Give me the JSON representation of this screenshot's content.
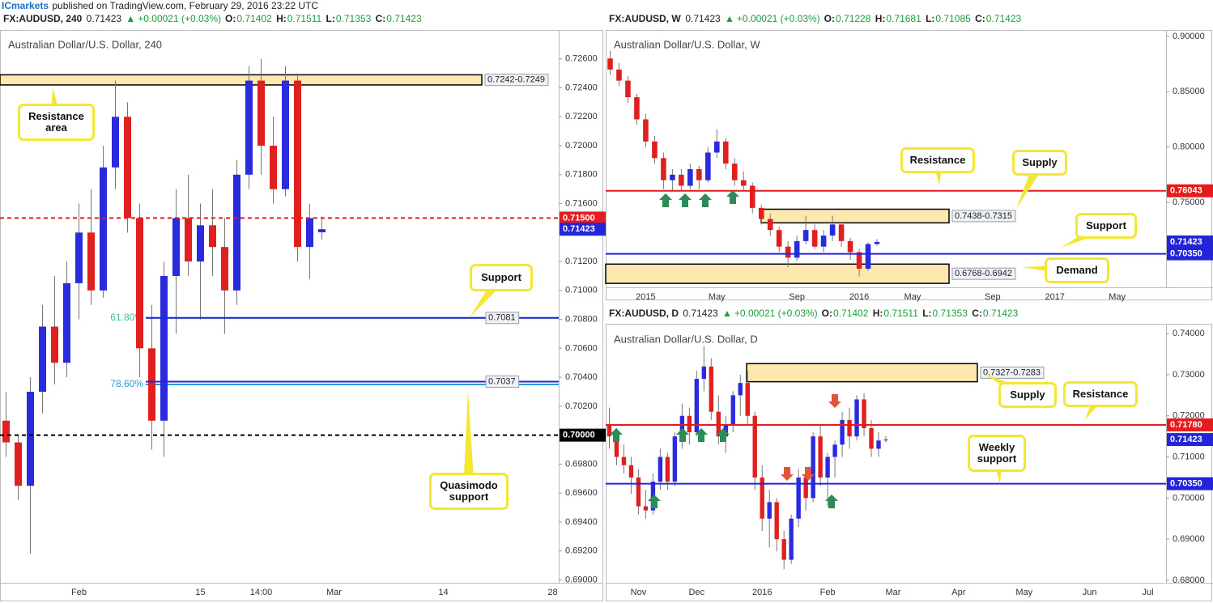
{
  "publisher": "ICmarkets",
  "published": "published on TradingView.com, February 29, 2016 23:22 UTC",
  "chart_data": [
    {
      "type": "candlestick",
      "symbol": "FX:AUDUSD, 240",
      "last": "0.71423",
      "change": "+0.00021 (+0.03%)",
      "ohlc": [
        {
          "label": "O:",
          "value": "0.71402"
        },
        {
          "label": "H:",
          "value": "0.71511"
        },
        {
          "label": "L:",
          "value": "0.71353"
        },
        {
          "label": "C:",
          "value": "0.71423"
        }
      ],
      "title": "Australian Dollar/U.S. Dollar, 240",
      "up_color": "#2a2adf",
      "down_color": "#e01f1f",
      "categories": [
        null,
        null,
        null,
        null,
        null,
        null,
        "Feb",
        null,
        null,
        null,
        null,
        null,
        null,
        null,
        null,
        null,
        "15",
        null,
        null,
        null,
        null,
        "14:00",
        null,
        null,
        null,
        null,
        null,
        "Mar",
        null,
        null,
        null,
        null,
        null,
        null,
        null,
        null,
        "14",
        null,
        null,
        null,
        null,
        null,
        null,
        null,
        null,
        "28"
      ],
      "values": [
        [
          0.701,
          0.703,
          0.6985,
          0.6995
        ],
        [
          0.6995,
          0.7,
          0.6955,
          0.6965
        ],
        [
          0.6965,
          0.704,
          0.6918,
          0.703
        ],
        [
          0.703,
          0.709,
          0.7015,
          0.7075
        ],
        [
          0.7075,
          0.711,
          0.7035,
          0.705
        ],
        [
          0.705,
          0.712,
          0.704,
          0.7105
        ],
        [
          0.7105,
          0.716,
          0.708,
          0.714
        ],
        [
          0.714,
          0.717,
          0.709,
          0.71
        ],
        [
          0.71,
          0.72,
          0.7095,
          0.7185
        ],
        [
          0.7185,
          0.7245,
          0.717,
          0.722
        ],
        [
          0.722,
          0.723,
          0.714,
          0.715
        ],
        [
          0.715,
          0.716,
          0.704,
          0.706
        ],
        [
          0.706,
          0.709,
          0.699,
          0.701
        ],
        [
          0.701,
          0.712,
          0.6985,
          0.711
        ],
        [
          0.711,
          0.717,
          0.707,
          0.715
        ],
        [
          0.715,
          0.718,
          0.711,
          0.712
        ],
        [
          0.712,
          0.716,
          0.708,
          0.7145
        ],
        [
          0.7145,
          0.717,
          0.711,
          0.713
        ],
        [
          0.713,
          0.715,
          0.707,
          0.71
        ],
        [
          0.71,
          0.719,
          0.709,
          0.718
        ],
        [
          0.718,
          0.7255,
          0.717,
          0.7245
        ],
        [
          0.7245,
          0.726,
          0.718,
          0.72
        ],
        [
          0.72,
          0.722,
          0.716,
          0.717
        ],
        [
          0.717,
          0.7255,
          0.7165,
          0.7245
        ],
        [
          0.7245,
          0.725,
          0.712,
          0.713
        ],
        [
          0.713,
          0.716,
          0.7108,
          0.715
        ],
        [
          0.71402,
          0.71511,
          0.71353,
          0.71423
        ],
        null,
        null,
        null,
        null,
        null,
        null,
        null,
        null,
        null,
        null,
        null,
        null,
        null,
        null,
        null,
        null,
        null,
        null,
        null
      ],
      "ylim": [
        0.6898,
        0.728
      ],
      "yticks": [
        {
          "value": 0.69,
          "label": "0.69000"
        },
        {
          "value": 0.692,
          "label": "0.69200"
        },
        {
          "value": 0.694,
          "label": "0.69400"
        },
        {
          "value": 0.696,
          "label": "0.69600"
        },
        {
          "value": 0.698,
          "label": "0.69800"
        },
        {
          "value": 0.7,
          "label": "0.70000"
        },
        {
          "value": 0.702,
          "label": "0.70200"
        },
        {
          "value": 0.704,
          "label": "0.70400"
        },
        {
          "value": 0.706,
          "label": "0.70600"
        },
        {
          "value": 0.708,
          "label": "0.70800"
        },
        {
          "value": 0.71,
          "label": "0.71000"
        },
        {
          "value": 0.712,
          "label": "0.71200"
        },
        {
          "value": 0.714,
          "label": "0.71400"
        },
        {
          "value": 0.716,
          "label": "0.71600"
        },
        {
          "value": 0.718,
          "label": "0.71800"
        },
        {
          "value": 0.72,
          "label": "0.72000"
        },
        {
          "value": 0.722,
          "label": "0.72200"
        },
        {
          "value": 0.724,
          "label": "0.72400"
        },
        {
          "value": 0.726,
          "label": "0.72600"
        }
      ],
      "levels": [
        {
          "value": 0.715,
          "label": "0.71500",
          "color": "#e51c1c",
          "style": "dashed",
          "place": "axis"
        },
        {
          "value": 0.71423,
          "label": "0.71423",
          "color": "#2424d8",
          "style": "none",
          "place": "axis"
        },
        {
          "value": 0.7081,
          "label": "0.7081",
          "color": "#2424d8",
          "style": "solid",
          "place": "tag"
        },
        {
          "value": 0.7037,
          "label": "0.7037",
          "color": "#2424d8",
          "style": "solid",
          "place": "tag"
        },
        {
          "value": 0.7,
          "label": "0.70000",
          "color": "#000000",
          "style": "dashed",
          "place": "axis"
        }
      ],
      "fibs": [
        {
          "value": 0.7081,
          "label": "61.80%",
          "color": "#3cc48a"
        },
        {
          "value": 0.7035,
          "label": "78.60%",
          "color": "#2e9bd6"
        }
      ],
      "zones": [
        {
          "low": 0.7242,
          "high": 0.7249,
          "label": "0.7242-0.7249"
        }
      ],
      "annotations": [
        "Resistance area",
        "Support",
        "Quasimodo support"
      ]
    },
    {
      "type": "candlestick",
      "symbol": "FX:AUDUSD, W",
      "last": "0.71423",
      "change": "+0.00021 (+0.03%)",
      "ohlc": [
        {
          "label": "O:",
          "value": "0.71228"
        },
        {
          "label": "H:",
          "value": "0.71681"
        },
        {
          "label": "L:",
          "value": "0.71085"
        },
        {
          "label": "C:",
          "value": "0.71423"
        }
      ],
      "title": "Australian Dollar/U.S. Dollar, W",
      "up_color": "#2a2adf",
      "down_color": "#e01f1f",
      "categories": [
        null,
        null,
        null,
        null,
        "2015",
        null,
        null,
        null,
        null,
        null,
        null,
        null,
        "May",
        null,
        null,
        null,
        null,
        null,
        null,
        null,
        null,
        "Sep",
        null,
        null,
        null,
        null,
        null,
        null,
        "2016",
        null,
        null,
        null,
        null,
        null,
        "May",
        null,
        null,
        null,
        null,
        null,
        null,
        null,
        null,
        "Sep",
        null,
        null,
        null,
        null,
        null,
        null,
        "2017",
        null,
        null,
        null,
        null,
        null,
        null,
        "May",
        null,
        null,
        null,
        null,
        null
      ],
      "values": [
        [
          0.88,
          0.887,
          0.865,
          0.87
        ],
        [
          0.87,
          0.876,
          0.855,
          0.86
        ],
        [
          0.86,
          0.864,
          0.84,
          0.845
        ],
        [
          0.845,
          0.848,
          0.82,
          0.825
        ],
        [
          0.825,
          0.83,
          0.8,
          0.805
        ],
        [
          0.805,
          0.81,
          0.785,
          0.79
        ],
        [
          0.79,
          0.795,
          0.762,
          0.77
        ],
        [
          0.77,
          0.78,
          0.76,
          0.775
        ],
        [
          0.775,
          0.78,
          0.76,
          0.765
        ],
        [
          0.765,
          0.785,
          0.762,
          0.78
        ],
        [
          0.78,
          0.783,
          0.762,
          0.77
        ],
        [
          0.77,
          0.8,
          0.768,
          0.795
        ],
        [
          0.795,
          0.816,
          0.79,
          0.805
        ],
        [
          0.805,
          0.808,
          0.78,
          0.785
        ],
        [
          0.785,
          0.79,
          0.765,
          0.77
        ],
        [
          0.77,
          0.778,
          0.76,
          0.765
        ],
        [
          0.765,
          0.768,
          0.74,
          0.745
        ],
        [
          0.745,
          0.748,
          0.73,
          0.735
        ],
        [
          0.735,
          0.74,
          0.72,
          0.725
        ],
        [
          0.725,
          0.728,
          0.705,
          0.71
        ],
        [
          0.71,
          0.715,
          0.691,
          0.7
        ],
        [
          0.7,
          0.72,
          0.697,
          0.715
        ],
        [
          0.715,
          0.738,
          0.712,
          0.725
        ],
        [
          0.725,
          0.73,
          0.708,
          0.71
        ],
        [
          0.71,
          0.725,
          0.705,
          0.72
        ],
        [
          0.72,
          0.738,
          0.715,
          0.73
        ],
        [
          0.73,
          0.732,
          0.71,
          0.715
        ],
        [
          0.715,
          0.718,
          0.698,
          0.705
        ],
        [
          0.705,
          0.708,
          0.683,
          0.69
        ],
        [
          0.69,
          0.714,
          0.688,
          0.7123
        ],
        [
          0.71228,
          0.71681,
          0.71085,
          0.71423
        ],
        null,
        null,
        null,
        null,
        null,
        null,
        null,
        null,
        null,
        null,
        null,
        null,
        null,
        null,
        null,
        null,
        null,
        null,
        null,
        null,
        null,
        null,
        null,
        null,
        null,
        null,
        null,
        null,
        null,
        null,
        null,
        null
      ],
      "ylim": [
        0.6732,
        0.9058
      ],
      "yticks": [
        {
          "value": 0.75,
          "label": "0.75000"
        },
        {
          "value": 0.8,
          "label": "0.80000"
        },
        {
          "value": 0.85,
          "label": "0.85000"
        },
        {
          "value": 0.9,
          "label": "0.90000"
        }
      ],
      "levels": [
        {
          "value": 0.76043,
          "label": "0.76043",
          "color": "#e51c1c",
          "style": "solid",
          "place": "axis"
        },
        {
          "value": 0.71423,
          "label": "0.71423",
          "color": "#2424d8",
          "style": "none",
          "place": "axis"
        },
        {
          "value": 0.7035,
          "label": "0.70350",
          "color": "#2424d8",
          "style": "solid",
          "place": "axis"
        }
      ],
      "zones": [
        {
          "low": 0.7315,
          "high": 0.7438,
          "label": "0.7438-0.7315"
        },
        {
          "low": 0.6768,
          "high": 0.6942,
          "label": "0.6768-0.6942"
        }
      ],
      "annotations": [
        "Resistance",
        "Supply",
        "Support",
        "Demand"
      ]
    },
    {
      "type": "candlestick",
      "symbol": "FX:AUDUSD, D",
      "last": "0.71423",
      "change": "+0.00021 (+0.03%)",
      "ohlc": [
        {
          "label": "O:",
          "value": "0.71402"
        },
        {
          "label": "H:",
          "value": "0.71511"
        },
        {
          "label": "L:",
          "value": "0.71353"
        },
        {
          "label": "C:",
          "value": "0.71423"
        }
      ],
      "title": "Australian Dollar/U.S. Dollar, D",
      "up_color": "#2a2adf",
      "down_color": "#e01f1f",
      "categories": [
        null,
        null,
        null,
        null,
        "Nov",
        null,
        null,
        null,
        null,
        null,
        null,
        null,
        "Dec",
        null,
        null,
        null,
        null,
        null,
        null,
        null,
        null,
        "2016",
        null,
        null,
        null,
        null,
        null,
        null,
        null,
        null,
        "Feb",
        null,
        null,
        null,
        null,
        null,
        null,
        null,
        null,
        "Mar",
        null,
        null,
        null,
        null,
        null,
        null,
        null,
        null,
        "Apr",
        null,
        null,
        null,
        null,
        null,
        null,
        null,
        null,
        "May",
        null,
        null,
        null,
        null,
        null,
        null,
        null,
        null,
        "Jun",
        null,
        null,
        null,
        null,
        null,
        null,
        null,
        "Jul",
        null,
        null
      ],
      "values": [
        [
          0.718,
          0.722,
          0.712,
          0.715
        ],
        [
          0.715,
          0.717,
          0.708,
          0.71
        ],
        [
          0.71,
          0.713,
          0.706,
          0.708
        ],
        [
          0.708,
          0.71,
          0.701,
          0.705
        ],
        [
          0.705,
          0.707,
          0.696,
          0.698
        ],
        [
          0.698,
          0.702,
          0.695,
          0.697
        ],
        [
          0.697,
          0.706,
          0.696,
          0.704
        ],
        [
          0.704,
          0.712,
          0.702,
          0.71
        ],
        [
          0.71,
          0.711,
          0.702,
          0.704
        ],
        [
          0.704,
          0.716,
          0.703,
          0.715
        ],
        [
          0.715,
          0.723,
          0.712,
          0.72
        ],
        [
          0.72,
          0.722,
          0.713,
          0.716
        ],
        [
          0.716,
          0.731,
          0.715,
          0.729
        ],
        [
          0.729,
          0.737,
          0.726,
          0.732
        ],
        [
          0.732,
          0.734,
          0.719,
          0.721
        ],
        [
          0.721,
          0.725,
          0.713,
          0.715
        ],
        [
          0.715,
          0.72,
          0.711,
          0.718
        ],
        [
          0.718,
          0.726,
          0.716,
          0.725
        ],
        [
          0.725,
          0.73,
          0.72,
          0.728
        ],
        [
          0.728,
          0.731,
          0.718,
          0.72
        ],
        [
          0.72,
          0.721,
          0.702,
          0.705
        ],
        [
          0.705,
          0.708,
          0.692,
          0.695
        ],
        [
          0.695,
          0.702,
          0.688,
          0.699
        ],
        [
          0.699,
          0.7,
          0.687,
          0.69
        ],
        [
          0.69,
          0.692,
          0.6827,
          0.685
        ],
        [
          0.685,
          0.696,
          0.684,
          0.695
        ],
        [
          0.695,
          0.707,
          0.693,
          0.705
        ],
        [
          0.705,
          0.706,
          0.697,
          0.7
        ],
        [
          0.7,
          0.716,
          0.699,
          0.715
        ],
        [
          0.715,
          0.718,
          0.703,
          0.705
        ],
        [
          0.705,
          0.711,
          0.698,
          0.71
        ],
        [
          0.71,
          0.714,
          0.705,
          0.713
        ],
        [
          0.713,
          0.721,
          0.71,
          0.719
        ],
        [
          0.719,
          0.722,
          0.712,
          0.715
        ],
        [
          0.715,
          0.725,
          0.714,
          0.724
        ],
        [
          0.724,
          0.7255,
          0.715,
          0.717
        ],
        [
          0.717,
          0.719,
          0.71,
          0.712
        ],
        [
          0.712,
          0.716,
          0.71,
          0.714
        ],
        [
          0.71402,
          0.71511,
          0.71353,
          0.71423
        ],
        null,
        null,
        null,
        null,
        null,
        null,
        null,
        null,
        null,
        null,
        null,
        null,
        null,
        null,
        null,
        null,
        null,
        null,
        null,
        null,
        null,
        null,
        null,
        null,
        null,
        null,
        null,
        null,
        null,
        null,
        null,
        null,
        null,
        null,
        null,
        null,
        null,
        null
      ],
      "ylim": [
        0.6794,
        0.7424
      ],
      "yticks": [
        {
          "value": 0.68,
          "label": "0.68000"
        },
        {
          "value": 0.69,
          "label": "0.69000"
        },
        {
          "value": 0.7,
          "label": "0.70000"
        },
        {
          "value": 0.71,
          "label": "0.71000"
        },
        {
          "value": 0.72,
          "label": "0.72000"
        },
        {
          "value": 0.73,
          "label": "0.73000"
        },
        {
          "value": 0.74,
          "label": "0.74000"
        }
      ],
      "levels": [
        {
          "value": 0.7178,
          "label": "0.71780",
          "color": "#e51c1c",
          "style": "solid",
          "place": "axis"
        },
        {
          "value": 0.71423,
          "label": "0.71423",
          "color": "#2424d8",
          "style": "none",
          "place": "axis"
        },
        {
          "value": 0.7035,
          "label": "0.70350",
          "color": "#2424d8",
          "style": "solid",
          "place": "axis"
        }
      ],
      "zones": [
        {
          "low": 0.7283,
          "high": 0.7327,
          "label": "0.7327-0.7283"
        }
      ],
      "annotations": [
        "Supply",
        "Resistance",
        "Weekly support"
      ]
    }
  ]
}
